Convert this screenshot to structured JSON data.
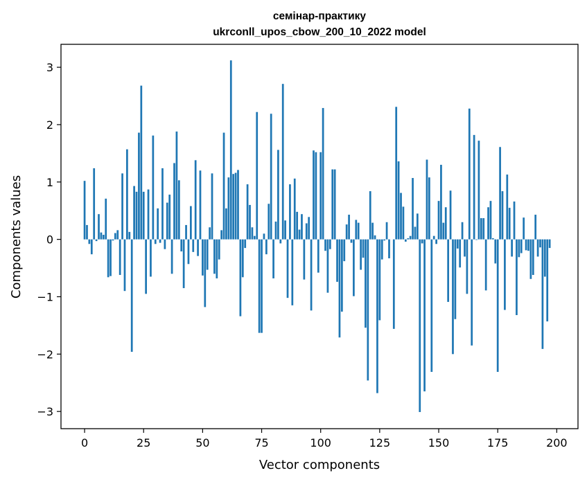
{
  "chart_data": {
    "type": "bar",
    "title_line1": "семінар-практику",
    "title_line2": "ukrconll_upos_cbow_200_10_2022 model",
    "xlabel": "Vector components",
    "ylabel": "Components values",
    "xlim": [
      -10,
      209
    ],
    "ylim": [
      -3.3,
      3.4
    ],
    "xticks": [
      0,
      25,
      50,
      75,
      100,
      125,
      150,
      175,
      200
    ],
    "xtick_labels": [
      "0",
      "25",
      "50",
      "75",
      "100",
      "125",
      "150",
      "175",
      "200"
    ],
    "yticks": [
      3,
      2,
      1,
      0,
      -1,
      -2,
      -3
    ],
    "ytick_labels": [
      "3",
      "2",
      "1",
      "0",
      "−1",
      "−2",
      "−3"
    ],
    "bar_color": "#1f77b4",
    "series": [
      {
        "name": "Components values",
        "values": [
          1.02,
          0.25,
          -0.08,
          -0.26,
          1.24,
          -0.03,
          0.44,
          0.12,
          0.08,
          0.71,
          -0.66,
          -0.64,
          -0.02,
          0.11,
          0.16,
          -0.62,
          1.15,
          -0.9,
          1.57,
          0.13,
          -1.96,
          0.93,
          0.83,
          1.86,
          2.68,
          0.83,
          -0.95,
          0.87,
          -0.65,
          1.81,
          -0.08,
          0.54,
          -0.06,
          1.24,
          -0.17,
          0.64,
          0.78,
          -0.6,
          1.33,
          1.88,
          1.03,
          -0.21,
          -0.85,
          0.25,
          -0.43,
          0.58,
          -0.22,
          1.38,
          -0.29,
          1.2,
          -0.63,
          -1.18,
          -0.53,
          0.21,
          1.15,
          -0.6,
          -0.68,
          -0.35,
          0.16,
          1.86,
          0.54,
          1.08,
          3.12,
          1.14,
          1.16,
          1.21,
          -1.34,
          -0.66,
          -0.15,
          0.96,
          0.6,
          0.21,
          0.06,
          2.22,
          -1.63,
          -1.63,
          0.1,
          -0.26,
          0.62,
          2.19,
          -0.68,
          0.31,
          1.56,
          -0.07,
          2.71,
          0.33,
          -1.02,
          0.96,
          -1.15,
          1.06,
          0.48,
          0.17,
          0.44,
          -0.7,
          0.28,
          0.39,
          -1.24,
          1.55,
          1.52,
          -0.58,
          1.52,
          2.29,
          -0.2,
          -0.93,
          -0.17,
          1.22,
          1.22,
          -0.74,
          -1.71,
          -1.26,
          -0.38,
          0.26,
          0.43,
          -0.06,
          -0.99,
          0.34,
          0.29,
          -0.53,
          -0.32,
          -1.54,
          -2.46,
          0.84,
          0.29,
          0.07,
          -2.68,
          -1.41,
          -0.35,
          -0.02,
          0.3,
          -0.33,
          0.0,
          -1.56,
          2.31,
          1.36,
          0.81,
          0.57,
          -0.04,
          0.02,
          0.06,
          1.07,
          0.22,
          0.45,
          -3.01,
          -0.07,
          -2.65,
          1.39,
          1.08,
          -2.31,
          0.06,
          -0.08,
          0.67,
          1.3,
          0.29,
          0.56,
          -1.09,
          0.85,
          -2.0,
          -1.39,
          -0.16,
          -0.49,
          0.3,
          -0.3,
          -0.95,
          2.28,
          -1.85,
          1.82,
          -0.01,
          1.72,
          0.37,
          0.37,
          -0.89,
          0.56,
          0.67,
          0.02,
          -0.42,
          -2.31,
          1.61,
          0.84,
          -1.23,
          1.13,
          0.55,
          -0.3,
          0.66,
          -1.32,
          -0.31,
          -0.24,
          0.38,
          -0.19,
          -0.2,
          -0.69,
          -0.62,
          0.43,
          -0.3,
          -0.14,
          -1.91,
          -0.65,
          -1.43,
          -0.15
        ]
      }
    ]
  }
}
